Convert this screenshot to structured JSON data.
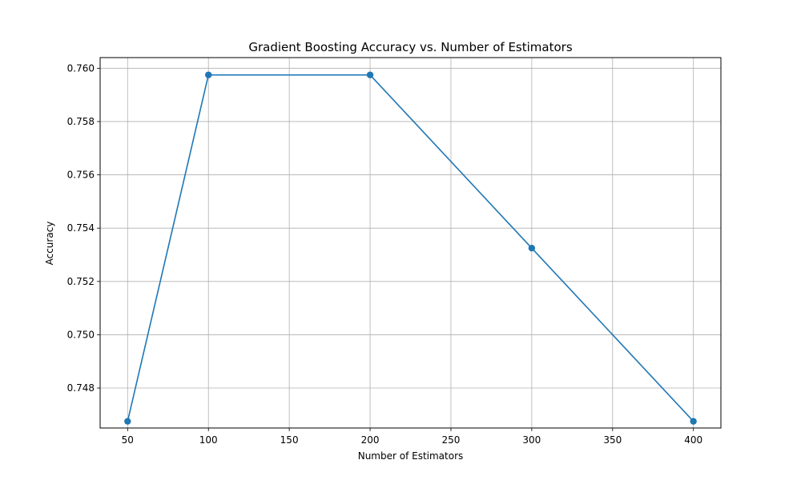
{
  "chart_data": {
    "type": "line",
    "title": "Gradient Boosting Accuracy vs. Number of Estimators",
    "xlabel": "Number of Estimators",
    "ylabel": "Accuracy",
    "xlim": [
      33,
      417
    ],
    "ylim": [
      0.7465,
      0.7604
    ],
    "xticks": [
      50,
      100,
      150,
      200,
      250,
      300,
      350,
      400
    ],
    "yticks": [
      0.748,
      0.75,
      0.752,
      0.754,
      0.756,
      0.758,
      0.76
    ],
    "ytick_labels": [
      "0.748",
      "0.750",
      "0.752",
      "0.754",
      "0.756",
      "0.758",
      "0.760"
    ],
    "grid": true,
    "series": [
      {
        "x": [
          50,
          100,
          200,
          300,
          400
        ],
        "y": [
          0.74675,
          0.75975,
          0.75975,
          0.75325,
          0.74675
        ],
        "color": "#1f77b4",
        "marker": "circle"
      }
    ]
  }
}
